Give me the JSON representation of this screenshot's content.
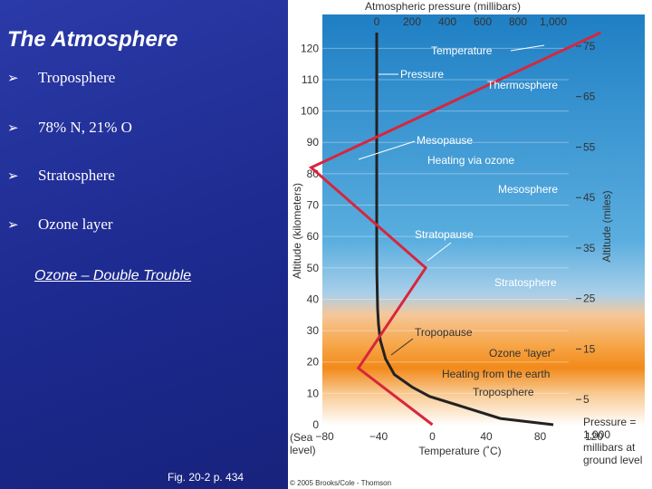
{
  "slide": {
    "title": "The Atmosphere",
    "bullets": [
      "Troposphere",
      "78% N, 21% O",
      "Stratosphere",
      "Ozone layer"
    ],
    "bullet_icon": "arrow-bullet-icon",
    "link_text": "Ozone – Double Trouble",
    "caption": "Fig. 20-2 p. 434"
  },
  "diagram": {
    "top_axis_title": "Atmospheric pressure (millibars)",
    "pressure_ticks": [
      "0",
      "200",
      "400",
      "600",
      "800",
      "1,000"
    ],
    "pressure_tick_values": [
      0,
      200,
      400,
      600,
      800,
      1000
    ],
    "left_axis_title": "Altitude (kilometers)",
    "km_ticks": [
      "0",
      "10",
      "20",
      "30",
      "40",
      "50",
      "60",
      "70",
      "80",
      "90",
      "100",
      "110",
      "120"
    ],
    "km_tick_values": [
      0,
      10,
      20,
      30,
      40,
      50,
      60,
      70,
      80,
      90,
      100,
      110,
      120
    ],
    "right_axis_title": "Altitude (miles)",
    "mile_ticks": [
      "5",
      "15",
      "25",
      "35",
      "45",
      "55",
      "65",
      "75"
    ],
    "mile_tick_values": [
      5,
      15,
      25,
      35,
      45,
      55,
      65,
      75
    ],
    "bottom_axis_title": "Temperature (˚C)",
    "temp_ticks": [
      "−80",
      "−40",
      "0",
      "40",
      "80",
      "120"
    ],
    "temp_tick_values": [
      -80,
      -40,
      0,
      40,
      80,
      120
    ],
    "sea_level_label": [
      "(Sea",
      "level)"
    ],
    "ground_note": [
      "Pressure =",
      "1,000",
      "millibars at",
      "ground level"
    ],
    "labels": {
      "temperature": "Temperature",
      "pressure": "Pressure",
      "thermosphere": "Thermosphere",
      "mesopause": "Mesopause",
      "heating_ozone": "Heating via ozone",
      "mesosphere": "Mesosphere",
      "stratopause": "Stratopause",
      "stratosphere": "Stratosphere",
      "tropopause": "Tropopause",
      "ozone_layer": "Ozone “layer”",
      "heating_earth": "Heating from the earth",
      "troposphere": "Troposphere"
    },
    "copyright": "© 2005 Brooks/Cole - Thomson",
    "temperature_profile": [
      {
        "temp_c": 0,
        "altitude_km": 0
      },
      {
        "temp_c": -55,
        "altitude_km": 18
      },
      {
        "temp_c": -5,
        "altitude_km": 50
      },
      {
        "temp_c": -90,
        "altitude_km": 82
      },
      {
        "temp_c": 125,
        "altitude_km": 125
      }
    ],
    "pressure_profile": [
      {
        "pressure_mb": 1000,
        "altitude_km": 0
      },
      {
        "pressure_mb": 700,
        "altitude_km": 2
      },
      {
        "pressure_mb": 500,
        "altitude_km": 5.5
      },
      {
        "pressure_mb": 300,
        "altitude_km": 9
      },
      {
        "pressure_mb": 200,
        "altitude_km": 12
      },
      {
        "pressure_mb": 100,
        "altitude_km": 16
      },
      {
        "pressure_mb": 50,
        "altitude_km": 21
      },
      {
        "pressure_mb": 20,
        "altitude_km": 27
      },
      {
        "pressure_mb": 10,
        "altitude_km": 32
      },
      {
        "pressure_mb": 5,
        "altitude_km": 37
      },
      {
        "pressure_mb": 1,
        "altitude_km": 48
      },
      {
        "pressure_mb": 0,
        "altitude_km": 60
      },
      {
        "pressure_mb": 0,
        "altitude_km": 125
      }
    ],
    "colors": {
      "temperature_line": "#d7263d",
      "pressure_line": "#222222",
      "sky_top": "#2d8fd0",
      "ozone_band": "#f28a1a"
    }
  }
}
